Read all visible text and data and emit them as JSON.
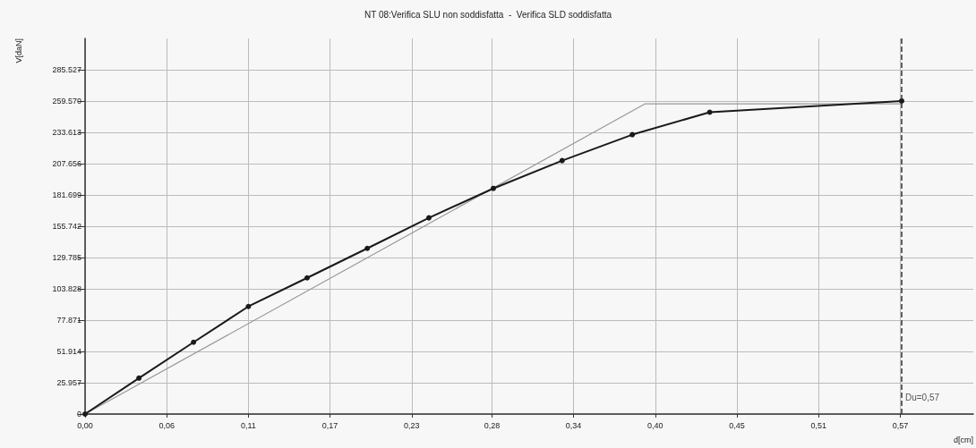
{
  "chart_data": {
    "type": "line",
    "title": "NT 08:Verifica SLU non soddisfatta  -  Verifica SLD soddisfatta",
    "xlabel": "d[cm]",
    "ylabel": "V[daN]",
    "xlim": [
      0,
      0.62
    ],
    "ylim": [
      0,
      311484
    ],
    "xticks": [
      {
        "value": 0,
        "label": "0,00"
      },
      {
        "value": 0.057,
        "label": "0,06"
      },
      {
        "value": 0.114,
        "label": "0,11"
      },
      {
        "value": 0.171,
        "label": "0,17"
      },
      {
        "value": 0.228,
        "label": "0,23"
      },
      {
        "value": 0.284,
        "label": "0,28"
      },
      {
        "value": 0.341,
        "label": "0,34"
      },
      {
        "value": 0.398,
        "label": "0,40"
      },
      {
        "value": 0.455,
        "label": "0,45"
      },
      {
        "value": 0.512,
        "label": "0,51"
      },
      {
        "value": 0.569,
        "label": "0,57"
      }
    ],
    "yticks": [
      0,
      {
        "value": 25957,
        "label": "25.957"
      },
      {
        "value": 51914,
        "label": "51.914"
      },
      {
        "value": 77871,
        "label": "77.871"
      },
      {
        "value": 103828,
        "label": "103.828"
      },
      {
        "value": 129785,
        "label": "129.785"
      },
      {
        "value": 155742,
        "label": "155.742"
      },
      {
        "value": 181699,
        "label": "181.699"
      },
      {
        "value": 207656,
        "label": "207.656"
      },
      {
        "value": 233613,
        "label": "233.613"
      },
      {
        "value": 259570,
        "label": "259.570"
      },
      {
        "value": 285527,
        "label": "285.527"
      }
    ],
    "grid": true,
    "line_style": "solid",
    "series": [
      {
        "color": "#999999",
        "marker": "none",
        "x": [
          0,
          0.391,
          0.57
        ],
        "values": [
          0,
          257300,
          257300
        ]
      },
      {
        "color": "#1a1a1a",
        "marker": "circle",
        "x": [
          0,
          0.0376,
          0.0757,
          0.114,
          0.155,
          0.197,
          0.24,
          0.285,
          0.333,
          0.382,
          0.436,
          0.57
        ],
        "values": [
          0,
          29800,
          59500,
          89200,
          112900,
          137400,
          162700,
          187100,
          210200,
          231700,
          250300,
          259600
        ]
      }
    ],
    "ref_lines": [
      {
        "axis": "x",
        "value": 0.57,
        "label": "Du=0,57",
        "color": "#333333",
        "line_style": "dashed"
      }
    ]
  }
}
